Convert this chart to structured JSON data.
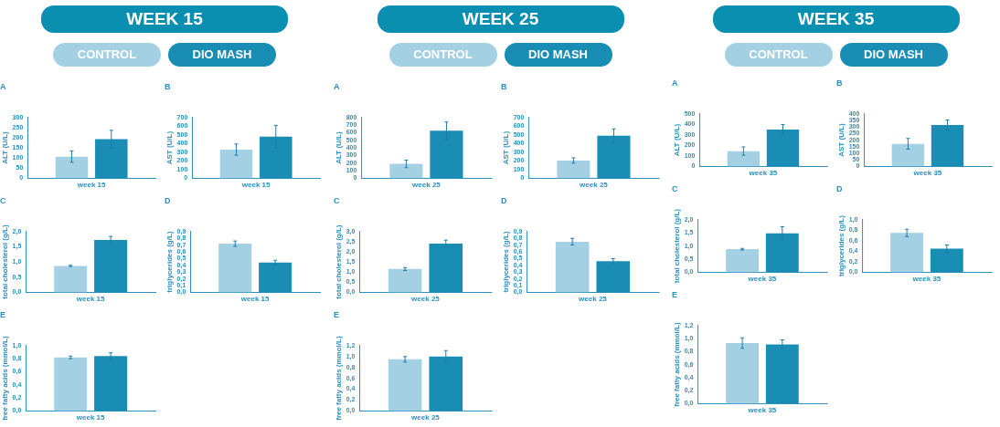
{
  "chart_data": [
    {
      "type": "bar",
      "title": "A",
      "legend": "top",
      "legend_title": "WEEK 15",
      "categories": [
        "week 15"
      ],
      "ylabel": "ALT (U/L)",
      "ylim": [
        0,
        300
      ],
      "yticks": [
        0,
        50,
        100,
        150,
        200,
        250,
        300
      ],
      "series": [
        {
          "name": "CONTROL",
          "color": "#a3d0e3",
          "values": [
            107
          ],
          "errors": [
            28
          ]
        },
        {
          "name": "DIO MASH",
          "color": "#1a8db5",
          "values": [
            193
          ],
          "errors": [
            44
          ]
        }
      ]
    },
    {
      "type": "bar",
      "title": "B",
      "categories": [
        "week 15"
      ],
      "ylabel": "AST (U/L)",
      "ylim": [
        0,
        700
      ],
      "yticks": [
        0,
        100,
        200,
        300,
        400,
        500,
        600,
        700
      ],
      "series": [
        {
          "color": "#a3d0e3",
          "values": [
            330
          ],
          "errors": [
            65
          ]
        },
        {
          "color": "#1a8db5",
          "values": [
            480
          ],
          "errors": [
            130
          ]
        }
      ]
    },
    {
      "type": "bar",
      "title": "C",
      "categories": [
        "week 15"
      ],
      "ylabel": "total cholesterol (g/L)",
      "ylim": [
        0,
        2
      ],
      "yticks": [
        {
          "value": 0,
          "label": "0,0"
        },
        {
          "value": 0.5,
          "label": "0,5"
        },
        {
          "value": 1,
          "label": "1,0"
        },
        {
          "value": 1.5,
          "label": "1,5"
        },
        {
          "value": 2,
          "label": "2,0"
        }
      ],
      "series": [
        {
          "color": "#a3d0e3",
          "values": [
            0.87
          ],
          "errors": [
            0.02
          ]
        },
        {
          "color": "#1a8db5",
          "values": [
            1.72
          ],
          "errors": [
            0.12
          ]
        }
      ]
    },
    {
      "type": "bar",
      "title": "D",
      "categories": [
        "week 15"
      ],
      "ylabel": "triglycerides (g/L)",
      "ylim": [
        0,
        0.9
      ],
      "yticks": [
        {
          "value": 0,
          "label": "0,0"
        },
        {
          "value": 0.1,
          "label": "0,1"
        },
        {
          "value": 0.2,
          "label": "0,2"
        },
        {
          "value": 0.3,
          "label": "0,3"
        },
        {
          "value": 0.4,
          "label": "0,4"
        },
        {
          "value": 0.5,
          "label": "0,5"
        },
        {
          "value": 0.6,
          "label": "0,6"
        },
        {
          "value": 0.7,
          "label": "0,7"
        },
        {
          "value": 0.8,
          "label": "0,8"
        },
        {
          "value": 0.9,
          "label": "0,9"
        }
      ],
      "series": [
        {
          "color": "#a3d0e3",
          "values": [
            0.72
          ],
          "errors": [
            0.04
          ]
        },
        {
          "color": "#1a8db5",
          "values": [
            0.44
          ],
          "errors": [
            0.035
          ]
        }
      ]
    },
    {
      "type": "bar",
      "title": "E",
      "categories": [
        "week 15"
      ],
      "ylabel": "free fatty acids (mmol/L)",
      "ylim": [
        0,
        1
      ],
      "yticks": [
        {
          "value": 0,
          "label": "0,0"
        },
        {
          "value": 0.2,
          "label": "0,2"
        },
        {
          "value": 0.4,
          "label": "0,4"
        },
        {
          "value": 0.6,
          "label": "0,6"
        },
        {
          "value": 0.8,
          "label": "0,8"
        },
        {
          "value": 1,
          "label": "1,0"
        }
      ],
      "series": [
        {
          "color": "#a3d0e3",
          "values": [
            0.82
          ],
          "errors": [
            0.02
          ]
        },
        {
          "color": "#1a8db5",
          "values": [
            0.84
          ],
          "errors": [
            0.05
          ]
        }
      ]
    },
    {
      "type": "bar",
      "title": "A",
      "legend": "top",
      "legend_title": "WEEK 25",
      "categories": [
        "week 25"
      ],
      "ylabel": "ALT (U/L)",
      "ylim": [
        0,
        800
      ],
      "yticks": [
        0,
        100,
        200,
        300,
        400,
        500,
        600,
        700,
        800
      ],
      "series": [
        {
          "name": "CONTROL",
          "color": "#a3d0e3",
          "values": [
            190
          ],
          "errors": [
            50
          ]
        },
        {
          "name": "DIO MASH",
          "color": "#1a8db5",
          "values": [
            625
          ],
          "errors": [
            115
          ]
        }
      ]
    },
    {
      "type": "bar",
      "title": "B",
      "categories": [
        "week 25"
      ],
      "ylabel": "AST (U/L)",
      "ylim": [
        0,
        700
      ],
      "yticks": [
        0,
        100,
        200,
        300,
        400,
        500,
        600,
        700
      ],
      "series": [
        {
          "color": "#a3d0e3",
          "values": [
            205
          ],
          "errors": [
            30
          ]
        },
        {
          "color": "#1a8db5",
          "values": [
            490
          ],
          "errors": [
            80
          ]
        }
      ]
    },
    {
      "type": "bar",
      "title": "C",
      "categories": [
        "week 25"
      ],
      "ylabel": "total cholesterol (g/L)",
      "ylim": [
        0,
        3
      ],
      "yticks": [
        {
          "value": 0,
          "label": "0,0"
        },
        {
          "value": 0.5,
          "label": "0,5"
        },
        {
          "value": 1,
          "label": "1,0"
        },
        {
          "value": 1.5,
          "label": "1,5"
        },
        {
          "value": 2,
          "label": "2,0"
        },
        {
          "value": 2.5,
          "label": "2,5"
        },
        {
          "value": 3,
          "label": "3,0"
        }
      ],
      "series": [
        {
          "color": "#a3d0e3",
          "values": [
            1.15
          ],
          "errors": [
            0.07
          ]
        },
        {
          "color": "#1a8db5",
          "values": [
            2.4
          ],
          "errors": [
            0.17
          ]
        }
      ]
    },
    {
      "type": "bar",
      "title": "D",
      "categories": [
        "week 25"
      ],
      "ylabel": "triglycerides (g/L)",
      "ylim": [
        0,
        0.9
      ],
      "yticks": [
        {
          "value": 0,
          "label": "0,0"
        },
        {
          "value": 0.1,
          "label": "0,1"
        },
        {
          "value": 0.2,
          "label": "0,2"
        },
        {
          "value": 0.3,
          "label": "0,3"
        },
        {
          "value": 0.4,
          "label": "0,4"
        },
        {
          "value": 0.5,
          "label": "0,5"
        },
        {
          "value": 0.6,
          "label": "0,6"
        },
        {
          "value": 0.7,
          "label": "0,7"
        },
        {
          "value": 0.8,
          "label": "0,8"
        },
        {
          "value": 0.9,
          "label": "0,9"
        }
      ],
      "series": [
        {
          "color": "#a3d0e3",
          "values": [
            0.75
          ],
          "errors": [
            0.05
          ]
        },
        {
          "color": "#1a8db5",
          "values": [
            0.46
          ],
          "errors": [
            0.04
          ]
        }
      ]
    },
    {
      "type": "bar",
      "title": "E",
      "categories": [
        "week 25"
      ],
      "ylabel": "free fatty acids (mmol/L)",
      "ylim": [
        0,
        1.2
      ],
      "yticks": [
        {
          "value": 0,
          "label": "0,0"
        },
        {
          "value": 0.2,
          "label": "0,2"
        },
        {
          "value": 0.4,
          "label": "0,4"
        },
        {
          "value": 0.6,
          "label": "0,6"
        },
        {
          "value": 0.8,
          "label": "0,8"
        },
        {
          "value": 1,
          "label": "1,0"
        },
        {
          "value": 1.2,
          "label": "1,2"
        }
      ],
      "series": [
        {
          "color": "#a3d0e3",
          "values": [
            0.95
          ],
          "errors": [
            0.05
          ]
        },
        {
          "color": "#1a8db5",
          "values": [
            1.0
          ],
          "errors": [
            0.11
          ]
        }
      ]
    },
    {
      "type": "bar",
      "title": "A",
      "legend": "top",
      "legend_title": "WEEK 35",
      "categories": [
        "week 35"
      ],
      "ylabel": "ALT (U/L)",
      "ylim": [
        0,
        500
      ],
      "yticks": [
        0,
        100,
        200,
        300,
        400,
        500
      ],
      "series": [
        {
          "name": "CONTROL",
          "color": "#a3d0e3",
          "values": [
            145
          ],
          "errors": [
            40
          ]
        },
        {
          "name": "DIO MASH",
          "color": "#1a8db5",
          "values": [
            350
          ],
          "errors": [
            48
          ]
        }
      ]
    },
    {
      "type": "bar",
      "title": "B",
      "categories": [
        "week 35"
      ],
      "ylabel": "AST (U/L)",
      "ylim": [
        0,
        400
      ],
      "yticks": [
        0,
        50,
        100,
        150,
        200,
        250,
        300,
        350,
        400
      ],
      "series": [
        {
          "color": "#a3d0e3",
          "values": [
            172
          ],
          "errors": [
            40
          ]
        },
        {
          "color": "#1a8db5",
          "values": [
            315
          ],
          "errors": [
            38
          ]
        }
      ]
    },
    {
      "type": "bar",
      "title": "C",
      "categories": [
        "week 35"
      ],
      "ylabel": "total cholesterol (g/L)",
      "ylim": [
        0,
        2
      ],
      "yticks": [
        {
          "value": 0,
          "label": "0,0"
        },
        {
          "value": 0.5,
          "label": "0,5"
        },
        {
          "value": 1,
          "label": "1,0"
        },
        {
          "value": 1.5,
          "label": "1,5"
        },
        {
          "value": 2,
          "label": "2,0"
        }
      ],
      "series": [
        {
          "color": "#a3d0e3",
          "values": [
            0.88
          ],
          "errors": [
            0.03
          ]
        },
        {
          "color": "#1a8db5",
          "values": [
            1.48
          ],
          "errors": [
            0.25
          ]
        }
      ]
    },
    {
      "type": "bar",
      "title": "D",
      "categories": [
        "week 35"
      ],
      "ylabel": "triglycerides (g/L)",
      "ylim": [
        0,
        1
      ],
      "yticks": [
        {
          "value": 0,
          "label": "0,0"
        },
        {
          "value": 0.2,
          "label": "0,2"
        },
        {
          "value": 0.4,
          "label": "0,4"
        },
        {
          "value": 0.6,
          "label": "0,6"
        },
        {
          "value": 0.8,
          "label": "0,8"
        },
        {
          "value": 1,
          "label": "1,0"
        }
      ],
      "series": [
        {
          "color": "#a3d0e3",
          "values": [
            0.75
          ],
          "errors": [
            0.07
          ]
        },
        {
          "color": "#1a8db5",
          "values": [
            0.45
          ],
          "errors": [
            0.07
          ]
        }
      ]
    },
    {
      "type": "bar",
      "title": "E",
      "categories": [
        "week 35"
      ],
      "ylabel": "free fatty acids (mmol/L)",
      "ylim": [
        0,
        1.2
      ],
      "yticks": [
        {
          "value": 0,
          "label": "0,0"
        },
        {
          "value": 0.2,
          "label": "0,2"
        },
        {
          "value": 0.4,
          "label": "0,4"
        },
        {
          "value": 0.6,
          "label": "0,6"
        },
        {
          "value": 0.8,
          "label": "0,8"
        },
        {
          "value": 1,
          "label": "1,0"
        },
        {
          "value": 1.2,
          "label": "1,2"
        }
      ],
      "series": [
        {
          "color": "#a3d0e3",
          "values": [
            0.93
          ],
          "errors": [
            0.08
          ]
        },
        {
          "color": "#1a8db5",
          "values": [
            0.91
          ],
          "errors": [
            0.07
          ]
        }
      ]
    }
  ]
}
